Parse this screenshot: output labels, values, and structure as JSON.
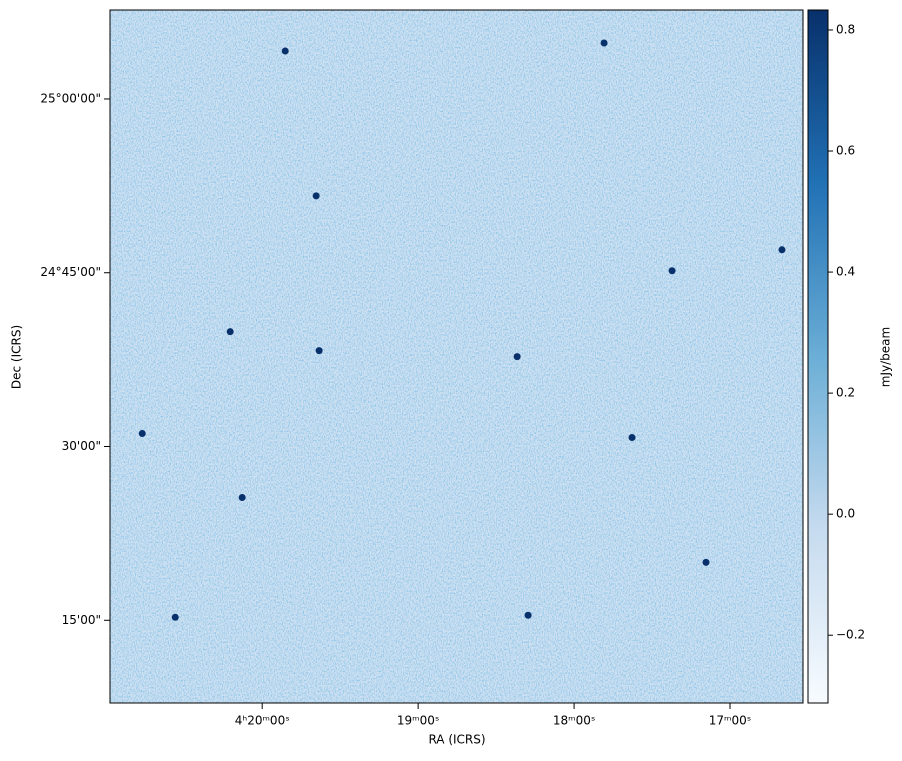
{
  "chart_data": {
    "type": "image",
    "x_label": "RA (ICRS)",
    "y_label": "Dec (ICRS)",
    "xlim": [
      65.244,
      64.133
    ],
    "ylim": [
      24.131,
      25.128
    ],
    "xticks": [
      {
        "value": 65.0,
        "label": "4ʰ20ᵐ00ˢ"
      },
      {
        "value": 64.75,
        "label": "19ᵐ00ˢ"
      },
      {
        "value": 64.5,
        "label": "18ᵐ00ˢ"
      },
      {
        "value": 64.25,
        "label": "17ᵐ00ˢ"
      }
    ],
    "yticks": [
      {
        "value": 25.0,
        "label": "25°00'00\""
      },
      {
        "value": 24.75,
        "label": "24°45'00\""
      },
      {
        "value": 24.5,
        "label": "30'00\""
      },
      {
        "value": 24.25,
        "label": "15'00\""
      }
    ],
    "colormap": "Blues",
    "colorbar": {
      "label": "mJy/beam",
      "lim": [
        -0.312,
        0.833
      ],
      "ticks": [
        {
          "value": -0.2,
          "label": "−0.2"
        },
        {
          "value": 0.0,
          "label": "0.0"
        },
        {
          "value": 0.2,
          "label": "0.2"
        },
        {
          "value": 0.4,
          "label": "0.4"
        },
        {
          "value": 0.6,
          "label": "0.6"
        },
        {
          "value": 0.8,
          "label": "0.8"
        }
      ]
    },
    "sources": {
      "ra": [
        65.0513,
        64.9087,
        64.9135,
        64.3429,
        64.4071,
        64.2885,
        65.1394,
        64.5737,
        65.1923,
        64.4519,
        64.9631,
        65.0321,
        64.5913,
        64.1667
      ],
      "dec": [
        24.6652,
        24.6379,
        24.8606,
        24.7529,
        24.5129,
        24.3333,
        24.2543,
        24.2572,
        24.5187,
        25.0805,
        25.069,
        24.4267,
        24.6293,
        24.783
      ]
    }
  }
}
